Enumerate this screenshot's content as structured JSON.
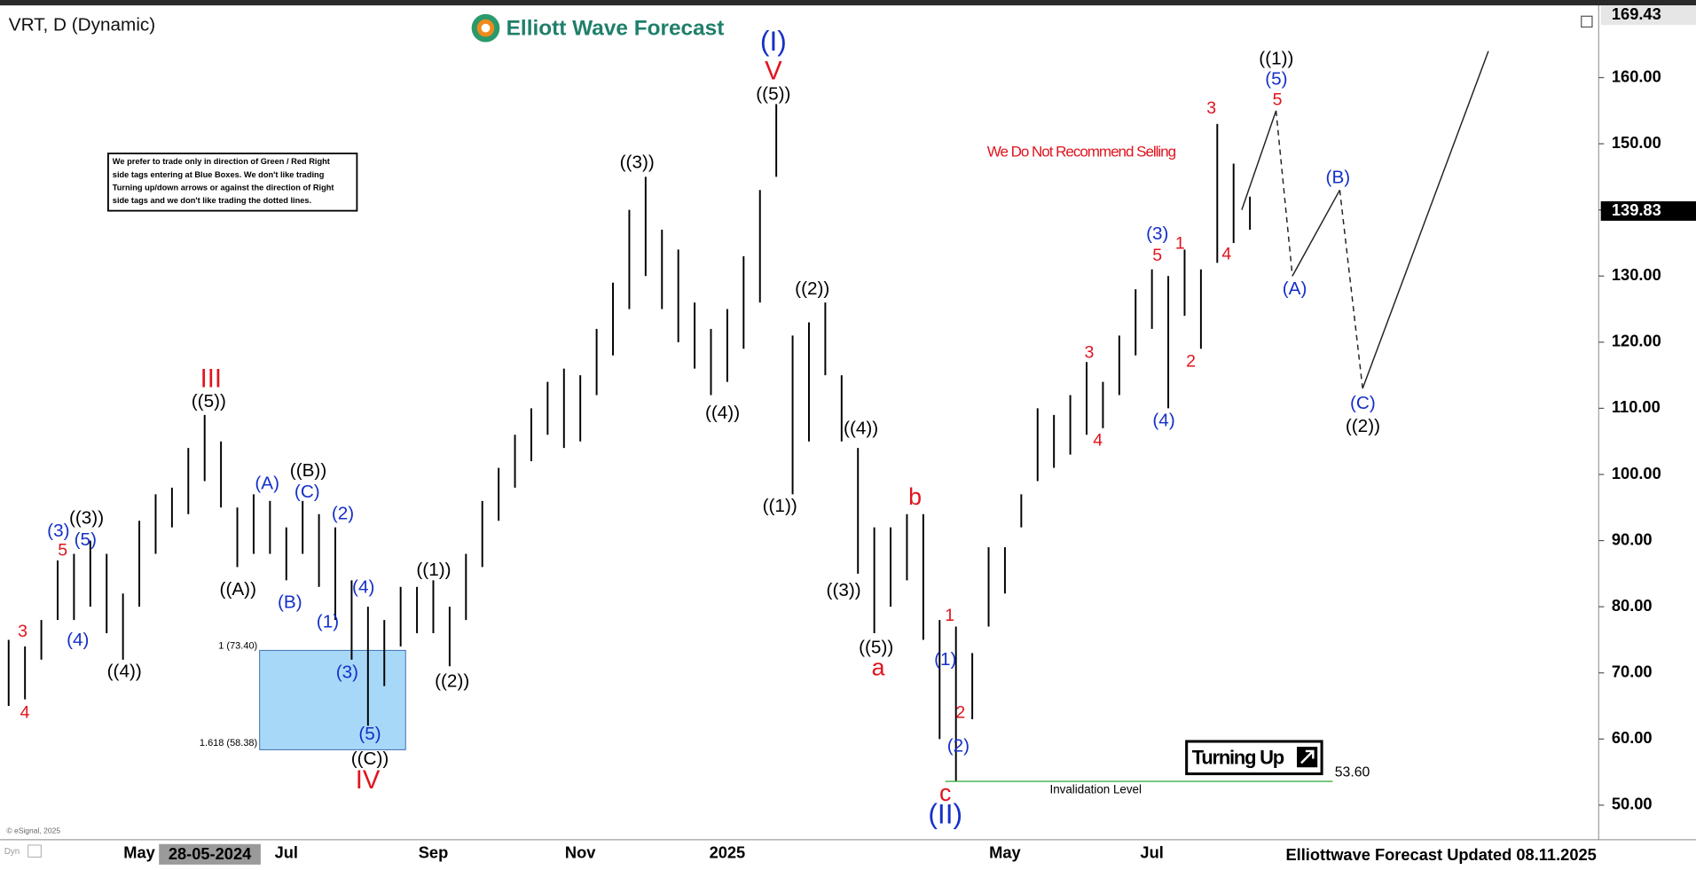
{
  "chart_data": {
    "type": "ohlc",
    "title": "VRT, D (Dynamic)",
    "brand": "Elliott Wave Forecast",
    "footer": "Elliottwave Forecast Updated 08.11.2025",
    "copyright": "© eSignal, 2025",
    "cursor_date": "28-05-2024",
    "status": "Dyn",
    "notice": [
      "We prefer to trade only in direction of Green / Red Right",
      "side tags entering at Blue Boxes. We don't like trading",
      "Turning up/down arrows or against the direction of Right",
      "side tags and we don't like trading the dotted lines."
    ],
    "annotation": "We Do Not Recommend Selling",
    "turning_label": "Turning Up",
    "categories": [
      null,
      null,
      null,
      null,
      null,
      null,
      null,
      null,
      "May",
      null,
      null,
      null,
      null,
      null,
      null,
      null,
      null,
      "Jul",
      null,
      null,
      null,
      null,
      null,
      null,
      null,
      null,
      "Sep",
      null,
      null,
      null,
      null,
      null,
      null,
      null,
      null,
      "Nov",
      null,
      null,
      null,
      null,
      null,
      null,
      null,
      null,
      "2025",
      null,
      null,
      null,
      null,
      null,
      null,
      null,
      null,
      null,
      null,
      null,
      null,
      null,
      null,
      null,
      null,
      "May",
      null,
      null,
      null,
      null,
      null,
      null,
      null,
      null,
      "Jul",
      null,
      null,
      null,
      null,
      null,
      null
    ],
    "high": [
      75,
      74,
      78,
      87,
      88,
      90,
      88,
      82,
      93,
      97,
      98,
      104,
      109,
      105,
      95,
      97,
      96,
      92,
      96,
      94,
      92,
      84,
      80,
      78,
      83,
      83,
      84,
      80,
      88,
      96,
      101,
      106,
      110,
      114,
      116,
      115,
      122,
      129,
      140,
      145,
      137,
      134,
      126,
      122,
      125,
      133,
      143,
      156,
      121,
      123,
      126,
      115,
      104,
      92,
      92,
      94,
      94,
      78,
      77,
      73,
      89,
      89,
      97,
      110,
      109,
      112,
      117,
      114,
      121,
      128,
      131,
      130,
      134,
      131,
      153,
      147,
      142
    ],
    "low": [
      65,
      66,
      72,
      78,
      78,
      80,
      76,
      72,
      80,
      88,
      92,
      94,
      99,
      95,
      86,
      88,
      88,
      84,
      88,
      83,
      78,
      72,
      62,
      68,
      74,
      76,
      76,
      71,
      78,
      86,
      93,
      98,
      102,
      106,
      104,
      105,
      112,
      118,
      125,
      130,
      125,
      120,
      116,
      112,
      114,
      119,
      126,
      145,
      97,
      105,
      115,
      105,
      85,
      76,
      80,
      84,
      75,
      60,
      53.6,
      63,
      77,
      82,
      92,
      99,
      101,
      103,
      106,
      107,
      112,
      118,
      122,
      110,
      124,
      119,
      132,
      135,
      137
    ],
    "bar_color": "#000000",
    "projection": [
      140,
      155,
      130,
      143,
      113,
      164
    ],
    "projection_color": "#222222",
    "ylim": [
      45.1,
      {
        "value": 169.43,
        "label": "169.43"
      }
    ],
    "yticks": [
      {
        "value": 50,
        "label": "50.00"
      },
      {
        "value": 60,
        "label": "60.00"
      },
      {
        "value": 70,
        "label": "70.00"
      },
      {
        "value": 80,
        "label": "80.00"
      },
      {
        "value": 90,
        "label": "90.00"
      },
      {
        "value": 100,
        "label": "100.00"
      },
      {
        "value": 110,
        "label": "110.00"
      },
      {
        "value": 120,
        "label": "120.00"
      },
      {
        "value": 130,
        "label": "130.00"
      },
      {
        "value": 140,
        "label": "140.00"
      },
      {
        "value": 150,
        "label": "150.00"
      },
      {
        "value": 160,
        "label": "160.00"
      }
    ],
    "last_price": {
      "value": 139.83,
      "label": "139.83"
    },
    "fib_box": {
      "top": 73.4,
      "top_label": "1 (73.40)",
      "bottom": 58.38,
      "bottom_label": "1.618 (58.38)",
      "color": "#a8d8f8"
    },
    "invalidation": {
      "value": 53.6,
      "label": "53.60",
      "text": "Invalidation Level",
      "color": "#3cb043"
    },
    "wave_labels": [
      {
        "text": "4",
        "color": "#e0141e"
      },
      {
        "text": "3",
        "color": "#e0141e"
      },
      {
        "text": "5",
        "color": "#e0141e"
      },
      {
        "text": "III",
        "color": "#e0141e"
      },
      {
        "text": "IV",
        "color": "#e0141e"
      },
      {
        "text": "V",
        "color": "#e0141e"
      },
      {
        "text": "a",
        "color": "#e0141e"
      },
      {
        "text": "b",
        "color": "#e0141e"
      },
      {
        "text": "c",
        "color": "#e0141e"
      },
      {
        "text": "1",
        "color": "#e0141e"
      },
      {
        "text": "2",
        "color": "#e0141e"
      },
      {
        "text": "3",
        "color": "#e0141e"
      },
      {
        "text": "4",
        "color": "#e0141e"
      },
      {
        "text": "5",
        "color": "#e0141e"
      },
      {
        "text": "1",
        "color": "#e0141e"
      },
      {
        "text": "2",
        "color": "#e0141e"
      },
      {
        "text": "3",
        "color": "#e0141e"
      },
      {
        "text": "4",
        "color": "#e0141e"
      },
      {
        "text": "5",
        "color": "#e0141e"
      },
      {
        "text": "(3)",
        "color": "#1530c8"
      },
      {
        "text": "(5)",
        "color": "#1530c8"
      },
      {
        "text": "(4)",
        "color": "#1530c8"
      },
      {
        "text": "(A)",
        "color": "#1530c8"
      },
      {
        "text": "(C)",
        "color": "#1530c8"
      },
      {
        "text": "(B)",
        "color": "#1530c8"
      },
      {
        "text": "(2)",
        "color": "#1530c8"
      },
      {
        "text": "(1)",
        "color": "#1530c8"
      },
      {
        "text": "(4)",
        "color": "#1530c8"
      },
      {
        "text": "(3)",
        "color": "#1530c8"
      },
      {
        "text": "(5)",
        "color": "#1530c8"
      },
      {
        "text": "(I)",
        "color": "#1530c8"
      },
      {
        "text": "(II)",
        "color": "#1530c8"
      },
      {
        "text": "(1)",
        "color": "#1530c8"
      },
      {
        "text": "(2)",
        "color": "#1530c8"
      },
      {
        "text": "(3)",
        "color": "#1530c8"
      },
      {
        "text": "(4)",
        "color": "#1530c8"
      },
      {
        "text": "(5)",
        "color": "#1530c8"
      },
      {
        "text": "(A)",
        "color": "#1530c8"
      },
      {
        "text": "(B)",
        "color": "#1530c8"
      },
      {
        "text": "(C)",
        "color": "#1530c8"
      },
      {
        "text": "((3))",
        "color": "#000000"
      },
      {
        "text": "((4))",
        "color": "#000000"
      },
      {
        "text": "((5))",
        "color": "#000000"
      },
      {
        "text": "((A))",
        "color": "#000000"
      },
      {
        "text": "((B))",
        "color": "#000000"
      },
      {
        "text": "((C))",
        "color": "#000000"
      },
      {
        "text": "((1))",
        "color": "#000000"
      },
      {
        "text": "((2))",
        "color": "#000000"
      },
      {
        "text": "((3))",
        "color": "#000000"
      },
      {
        "text": "((4))",
        "color": "#000000"
      },
      {
        "text": "((5))",
        "color": "#000000"
      },
      {
        "text": "((1))",
        "color": "#000000"
      },
      {
        "text": "((2))",
        "color": "#000000"
      },
      {
        "text": "((4))",
        "color": "#000000"
      },
      {
        "text": "((3))",
        "color": "#000000"
      },
      {
        "text": "((5))",
        "color": "#000000"
      },
      {
        "text": "((1))",
        "color": "#000000"
      },
      {
        "text": "((2))",
        "color": "#000000"
      }
    ]
  }
}
